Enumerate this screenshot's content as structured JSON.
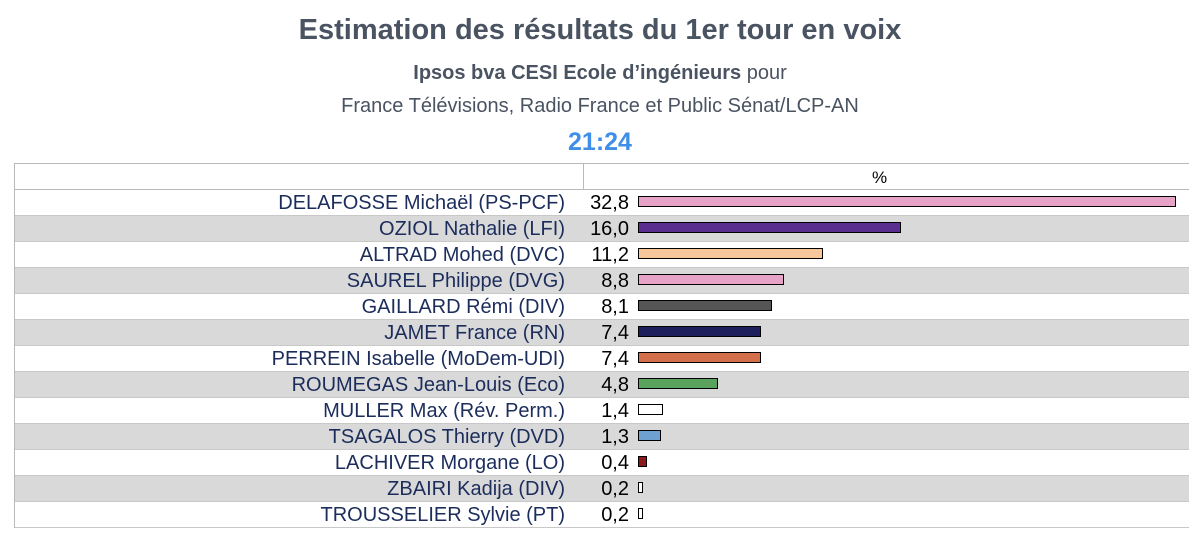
{
  "header": {
    "title": "Estimation des résultats du 1er tour en voix",
    "subtitle_bold": "Ipsos bva CESI Ecole d’ingénieurs",
    "subtitle_rest": " pour",
    "subtitle2": "France Télévisions, Radio France et Public Sénat/LCP-AN",
    "time": "21:24"
  },
  "chart_data": {
    "type": "bar",
    "orientation": "horizontal",
    "unit_label": "%",
    "xlim": [
      0,
      32.8
    ],
    "categories": [
      "DELAFOSSE Michaël (PS-PCF)",
      "OZIOL Nathalie (LFI)",
      "ALTRAD Mohed (DVC)",
      "SAUREL Philippe (DVG)",
      "GAILLARD Rémi (DIV)",
      "JAMET France (RN)",
      "PERREIN Isabelle (MoDem-UDI)",
      "ROUMEGAS Jean-Louis (Eco)",
      "MULLER Max (Rév. Perm.)",
      "TSAGALOS Thierry (DVD)",
      "LACHIVER Morgane (LO)",
      "ZBAIRI Kadija (DIV)",
      "TROUSSELIER Sylvie (PT)"
    ],
    "values": [
      32.8,
      16.0,
      11.2,
      8.8,
      8.1,
      7.4,
      7.4,
      4.8,
      1.4,
      1.3,
      0.4,
      0.2,
      0.2
    ],
    "value_labels": [
      "32,8",
      "16,0",
      "11,2",
      "8,8",
      "8,1",
      "7,4",
      "7,4",
      "4,8",
      "1,4",
      "1,3",
      "0,4",
      "0,2",
      "0,2"
    ],
    "colors": [
      "#e7a3c7",
      "#5a2e8e",
      "#f6c79b",
      "#e7a3c7",
      "#555555",
      "#1c1f5c",
      "#d36f4b",
      "#5aa35c",
      "#ffffff",
      "#6fa0d2",
      "#8b1a1a",
      "#ffffff",
      "#ffffff"
    ]
  }
}
